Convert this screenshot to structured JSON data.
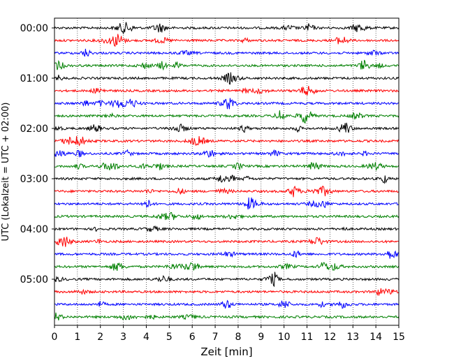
{
  "chart_data": {
    "type": "line",
    "title": "",
    "xlabel": "Zeit  [min]",
    "ylabel": "UTC (Lokalzeit = UTC + 02:00)",
    "xlim": [
      0,
      15
    ],
    "x_ticks": [
      "0",
      "1",
      "2",
      "3",
      "4",
      "5",
      "6",
      "7",
      "8",
      "9",
      "10",
      "11",
      "12",
      "13",
      "14",
      "15"
    ],
    "y_ticks": [
      "00:00",
      "01:00",
      "02:00",
      "03:00",
      "04:00",
      "05:00"
    ],
    "grid": "vertical dotted lines at each minute",
    "trace_interval_minutes": 15,
    "color_cycle": [
      "#000000",
      "#ff0000",
      "#0000ff",
      "#008000"
    ],
    "traces": [
      {
        "start": "00:00"
      },
      {
        "start": "00:15"
      },
      {
        "start": "00:30"
      },
      {
        "start": "00:45"
      },
      {
        "start": "01:00"
      },
      {
        "start": "01:15"
      },
      {
        "start": "01:30"
      },
      {
        "start": "01:45"
      },
      {
        "start": "02:00"
      },
      {
        "start": "02:15"
      },
      {
        "start": "02:30"
      },
      {
        "start": "02:45"
      },
      {
        "start": "03:00"
      },
      {
        "start": "03:15"
      },
      {
        "start": "03:30"
      },
      {
        "start": "03:45"
      },
      {
        "start": "04:00"
      },
      {
        "start": "04:15"
      },
      {
        "start": "04:30"
      },
      {
        "start": "04:45"
      },
      {
        "start": "05:00"
      },
      {
        "start": "05:15"
      },
      {
        "start": "05:30"
      },
      {
        "start": "05:45"
      }
    ]
  }
}
